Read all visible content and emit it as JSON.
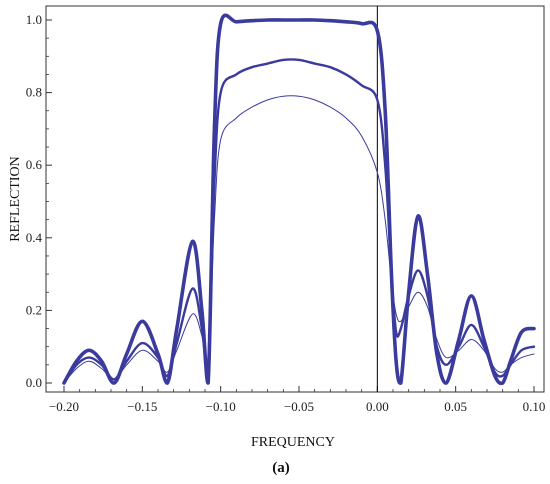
{
  "chart_data": {
    "type": "line",
    "xlabel": "FREQUENCY",
    "ylabel": "REFLECTION",
    "panel_label": "(a)",
    "xlim": [
      -0.2,
      0.1
    ],
    "ylim": [
      0.0,
      1.0
    ],
    "x_ticks": [
      -0.2,
      -0.15,
      -0.1,
      -0.05,
      0.0,
      0.05,
      0.1
    ],
    "x_tick_labels": [
      "−0.20",
      "−0.15",
      "−0.10",
      "−0.05",
      "0.00",
      "0.05",
      "0.10"
    ],
    "y_ticks": [
      0.0,
      0.2,
      0.4,
      0.6,
      0.8,
      1.0
    ],
    "y_tick_labels": [
      "0.0",
      "0.2",
      "0.4",
      "0.6",
      "0.8",
      "1.0"
    ],
    "grid": false,
    "vertical_reference_line_x": 0.0,
    "line_color": "#3b3b9e",
    "series": [
      {
        "stroke": "thick",
        "x": [
          -0.2,
          -0.192,
          -0.184,
          -0.176,
          -0.168,
          -0.16,
          -0.15,
          -0.14,
          -0.134,
          -0.128,
          -0.118,
          -0.112,
          -0.108,
          -0.104,
          -0.1,
          -0.09,
          -0.08,
          -0.07,
          -0.06,
          -0.05,
          -0.04,
          -0.03,
          -0.02,
          -0.01,
          0.0,
          0.005,
          0.009,
          0.012,
          0.015,
          0.02,
          0.026,
          0.032,
          0.038,
          0.044,
          0.052,
          0.06,
          0.068,
          0.075,
          0.08,
          0.085,
          0.092,
          0.1
        ],
        "y": [
          0.0,
          0.06,
          0.09,
          0.06,
          0.0,
          0.08,
          0.17,
          0.08,
          0.0,
          0.15,
          0.39,
          0.2,
          0.0,
          0.7,
          0.99,
          0.995,
          0.998,
          1.0,
          1.0,
          1.0,
          1.0,
          0.998,
          0.995,
          0.99,
          0.97,
          0.75,
          0.3,
          0.06,
          0.0,
          0.25,
          0.46,
          0.3,
          0.08,
          0.0,
          0.12,
          0.24,
          0.12,
          0.02,
          0.0,
          0.06,
          0.14,
          0.15
        ]
      },
      {
        "stroke": "medium",
        "x": [
          -0.2,
          -0.192,
          -0.184,
          -0.176,
          -0.168,
          -0.16,
          -0.15,
          -0.14,
          -0.134,
          -0.128,
          -0.118,
          -0.112,
          -0.108,
          -0.104,
          -0.1,
          -0.09,
          -0.08,
          -0.07,
          -0.06,
          -0.05,
          -0.04,
          -0.03,
          -0.02,
          -0.01,
          0.0,
          0.005,
          0.009,
          0.012,
          0.015,
          0.02,
          0.026,
          0.032,
          0.038,
          0.044,
          0.052,
          0.06,
          0.068,
          0.075,
          0.08,
          0.085,
          0.092,
          0.1
        ],
        "y": [
          0.0,
          0.05,
          0.07,
          0.05,
          0.01,
          0.06,
          0.11,
          0.07,
          0.02,
          0.11,
          0.26,
          0.15,
          0.03,
          0.55,
          0.8,
          0.85,
          0.87,
          0.88,
          0.89,
          0.89,
          0.88,
          0.87,
          0.85,
          0.82,
          0.78,
          0.6,
          0.3,
          0.14,
          0.15,
          0.24,
          0.31,
          0.24,
          0.1,
          0.05,
          0.1,
          0.16,
          0.1,
          0.03,
          0.02,
          0.05,
          0.09,
          0.1
        ]
      },
      {
        "stroke": "thin",
        "x": [
          -0.2,
          -0.192,
          -0.184,
          -0.176,
          -0.168,
          -0.16,
          -0.15,
          -0.14,
          -0.134,
          -0.128,
          -0.118,
          -0.112,
          -0.108,
          -0.104,
          -0.1,
          -0.09,
          -0.08,
          -0.07,
          -0.06,
          -0.05,
          -0.04,
          -0.03,
          -0.02,
          -0.01,
          0.0,
          0.005,
          0.009,
          0.012,
          0.015,
          0.02,
          0.026,
          0.032,
          0.038,
          0.044,
          0.052,
          0.06,
          0.068,
          0.075,
          0.08,
          0.085,
          0.092,
          0.1
        ],
        "y": [
          0.0,
          0.04,
          0.06,
          0.04,
          0.01,
          0.05,
          0.09,
          0.06,
          0.03,
          0.09,
          0.19,
          0.13,
          0.05,
          0.45,
          0.67,
          0.73,
          0.76,
          0.78,
          0.79,
          0.79,
          0.78,
          0.76,
          0.73,
          0.68,
          0.58,
          0.45,
          0.28,
          0.19,
          0.17,
          0.21,
          0.25,
          0.21,
          0.12,
          0.07,
          0.09,
          0.12,
          0.09,
          0.04,
          0.03,
          0.05,
          0.07,
          0.08
        ]
      }
    ]
  }
}
